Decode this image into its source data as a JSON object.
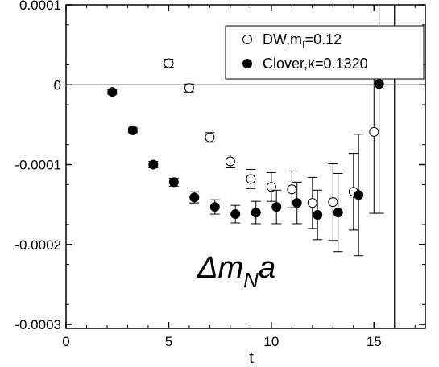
{
  "chart_data": {
    "type": "scatter",
    "xlabel": "t",
    "ylabel": "",
    "xlim": [
      0,
      17.5
    ],
    "ylim": [
      -0.000305,
      0.0001
    ],
    "x_ticks": [
      0,
      5,
      10,
      15
    ],
    "y_ticks": [
      0.0001,
      0,
      -0.0001,
      -0.0002,
      -0.0003
    ],
    "x_tick_labels": [
      "0",
      "5",
      "10",
      "15"
    ],
    "y_tick_labels": [
      "0.0001",
      "0",
      "-0.0001",
      "-0.0002",
      "-0.0003"
    ],
    "reference_lines": {
      "horizontal_y": 0,
      "vertical_x": 16
    },
    "annotation": {
      "main": "Δm",
      "sub": "N",
      "tail": "a"
    },
    "legend_position": "top-right",
    "series": [
      {
        "name": "DW,m_f=0.12",
        "legend_main": "DW,m",
        "legend_sub": "f",
        "legend_tail": "=0.12",
        "marker": "open-circle",
        "points": [
          {
            "x": 5,
            "y": 2.7e-05,
            "err": 5e-06
          },
          {
            "x": 6,
            "y": -4e-06,
            "err": 5e-06
          },
          {
            "x": 7,
            "y": -6.6e-05,
            "err": 6e-06
          },
          {
            "x": 8,
            "y": -9.6e-05,
            "err": 8e-06
          },
          {
            "x": 9,
            "y": -0.000118,
            "err": 1.2e-05
          },
          {
            "x": 10,
            "y": -0.000128,
            "err": 1.8e-05
          },
          {
            "x": 11,
            "y": -0.000131,
            "err": 2.3e-05
          },
          {
            "x": 12,
            "y": -0.000148,
            "err": 3.2e-05
          },
          {
            "x": 13,
            "y": -0.000147,
            "err": 4.8e-05
          },
          {
            "x": 14,
            "y": -0.000134,
            "err": 4.8e-05
          },
          {
            "x": 15,
            "y": -5.9e-05,
            "err": 0.000102
          },
          {
            "x": 16,
            "y": 2.6e-05,
            "err": 0.0004
          }
        ]
      },
      {
        "name": "Clover,κ=0.1320",
        "legend_main": "Clover,κ=0.1320",
        "legend_sub": "",
        "legend_tail": "",
        "marker": "filled-circle",
        "points": [
          {
            "x": 2.25,
            "y": -9e-06,
            "err": 3e-06
          },
          {
            "x": 3.25,
            "y": -5.7e-05,
            "err": 3e-06
          },
          {
            "x": 4.25,
            "y": -0.0001,
            "err": 4e-06
          },
          {
            "x": 5.25,
            "y": -0.000122,
            "err": 5e-06
          },
          {
            "x": 6.25,
            "y": -0.000141,
            "err": 7e-06
          },
          {
            "x": 7.25,
            "y": -0.000153,
            "err": 9e-06
          },
          {
            "x": 8.25,
            "y": -0.000162,
            "err": 1.1e-05
          },
          {
            "x": 9.25,
            "y": -0.00016,
            "err": 1.4e-05
          },
          {
            "x": 10.25,
            "y": -0.000153,
            "err": 2.1e-05
          },
          {
            "x": 11.25,
            "y": -0.000148,
            "err": 2.6e-05
          },
          {
            "x": 12.25,
            "y": -0.000163,
            "err": 3.1e-05
          },
          {
            "x": 13.25,
            "y": -0.00016,
            "err": 4.9e-05
          },
          {
            "x": 14.25,
            "y": -0.000138,
            "err": 7.6e-05
          },
          {
            "x": 15.25,
            "y": 1e-06,
            "err": 0.000162
          }
        ]
      }
    ]
  }
}
